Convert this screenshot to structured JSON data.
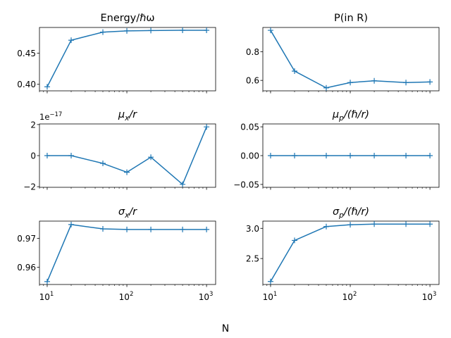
{
  "figure": {
    "xlabel": "N"
  },
  "chart_data": [
    {
      "type": "line",
      "title": "Energy/ℏω",
      "xscale": "log",
      "x": [
        10,
        20,
        50,
        100,
        200,
        500,
        1000
      ],
      "series": [
        {
          "values": [
            0.396,
            0.471,
            0.484,
            0.486,
            0.4865,
            0.487,
            0.487
          ]
        }
      ],
      "xlim": [
        8,
        1300
      ],
      "ylim": [
        0.3895,
        0.4915
      ],
      "yticks": [
        0.4,
        0.45
      ],
      "yticklabels": [
        "0.40",
        "0.45"
      ],
      "xticklabels": [],
      "color": "#1f77b4",
      "marker": "+"
    },
    {
      "type": "line",
      "title": "P(in R)",
      "xscale": "log",
      "x": [
        10,
        20,
        50,
        100,
        200,
        500,
        1000
      ],
      "series": [
        {
          "values": [
            0.95,
            0.665,
            0.548,
            0.585,
            0.597,
            0.585,
            0.589
          ]
        }
      ],
      "xlim": [
        8,
        1300
      ],
      "ylim": [
        0.527,
        0.97
      ],
      "yticks": [
        0.6,
        0.8
      ],
      "yticklabels": [
        "0.6",
        "0.8"
      ],
      "xticklabels": [],
      "color": "#1f77b4",
      "marker": "+"
    },
    {
      "type": "line",
      "title": "μx/r",
      "title_parts": {
        "main": "μ",
        "sub": "x",
        "rest": "/r"
      },
      "xscale": "log",
      "offset": "1e−17",
      "offset_parts": {
        "base": "1e",
        "exp": "−17"
      },
      "x": [
        10,
        20,
        50,
        100,
        200,
        500,
        1000
      ],
      "series": [
        {
          "values": [
            0.0,
            0.0,
            -0.5,
            -1.07,
            -0.1,
            -1.85,
            1.85
          ]
        }
      ],
      "xlim": [
        8,
        1300
      ],
      "ylim": [
        -2.04,
        2.04
      ],
      "yticks": [
        -2,
        0,
        2
      ],
      "yticklabels": [
        "−2",
        "0",
        "2"
      ],
      "xticklabels": [],
      "color": "#1f77b4",
      "marker": "+"
    },
    {
      "type": "line",
      "title": "μp/(ℏ/r)",
      "title_parts": {
        "main": "μ",
        "sub": "p",
        "rest": "/(ℏ/r)"
      },
      "xscale": "log",
      "x": [
        10,
        20,
        50,
        100,
        200,
        500,
        1000
      ],
      "series": [
        {
          "values": [
            0,
            0,
            0,
            0,
            0,
            0,
            0
          ]
        }
      ],
      "xlim": [
        8,
        1300
      ],
      "ylim": [
        -0.055,
        0.055
      ],
      "yticks": [
        -0.05,
        0.0,
        0.05
      ],
      "yticklabels": [
        "−0.05",
        "0.00",
        "0.05"
      ],
      "xticklabels": [],
      "color": "#1f77b4",
      "marker": "+"
    },
    {
      "type": "line",
      "title": "σx/r",
      "title_parts": {
        "main": "σ",
        "sub": "x",
        "rest": "/r"
      },
      "xscale": "log",
      "x": [
        10,
        20,
        50,
        100,
        200,
        500,
        1000
      ],
      "series": [
        {
          "values": [
            0.955,
            0.9748,
            0.9733,
            0.9731,
            0.9731,
            0.9731,
            0.9731
          ]
        }
      ],
      "xlim": [
        8,
        1300
      ],
      "ylim": [
        0.954,
        0.976
      ],
      "yticks": [
        0.96,
        0.97
      ],
      "yticklabels": [
        "0.96",
        "0.97"
      ],
      "xticklabels": [
        {
          "base": "10",
          "exp": "1"
        },
        {
          "base": "10",
          "exp": "2"
        },
        {
          "base": "10",
          "exp": "3"
        }
      ],
      "color": "#1f77b4",
      "marker": "+"
    },
    {
      "type": "line",
      "title": "σp/(ℏ/r)",
      "title_parts": {
        "main": "σ",
        "sub": "p",
        "rest": "/(ℏ/r)"
      },
      "xscale": "log",
      "x": [
        10,
        20,
        50,
        100,
        200,
        500,
        1000
      ],
      "series": [
        {
          "values": [
            2.12,
            2.8,
            3.03,
            3.06,
            3.07,
            3.07,
            3.07
          ]
        }
      ],
      "xlim": [
        8,
        1300
      ],
      "ylim": [
        2.07,
        3.12
      ],
      "yticks": [
        2.5,
        3.0
      ],
      "yticklabels": [
        "2.5",
        "3.0"
      ],
      "xticklabels": [
        {
          "base": "10",
          "exp": "1"
        },
        {
          "base": "10",
          "exp": "2"
        },
        {
          "base": "10",
          "exp": "3"
        }
      ],
      "color": "#1f77b4",
      "marker": "+"
    }
  ]
}
